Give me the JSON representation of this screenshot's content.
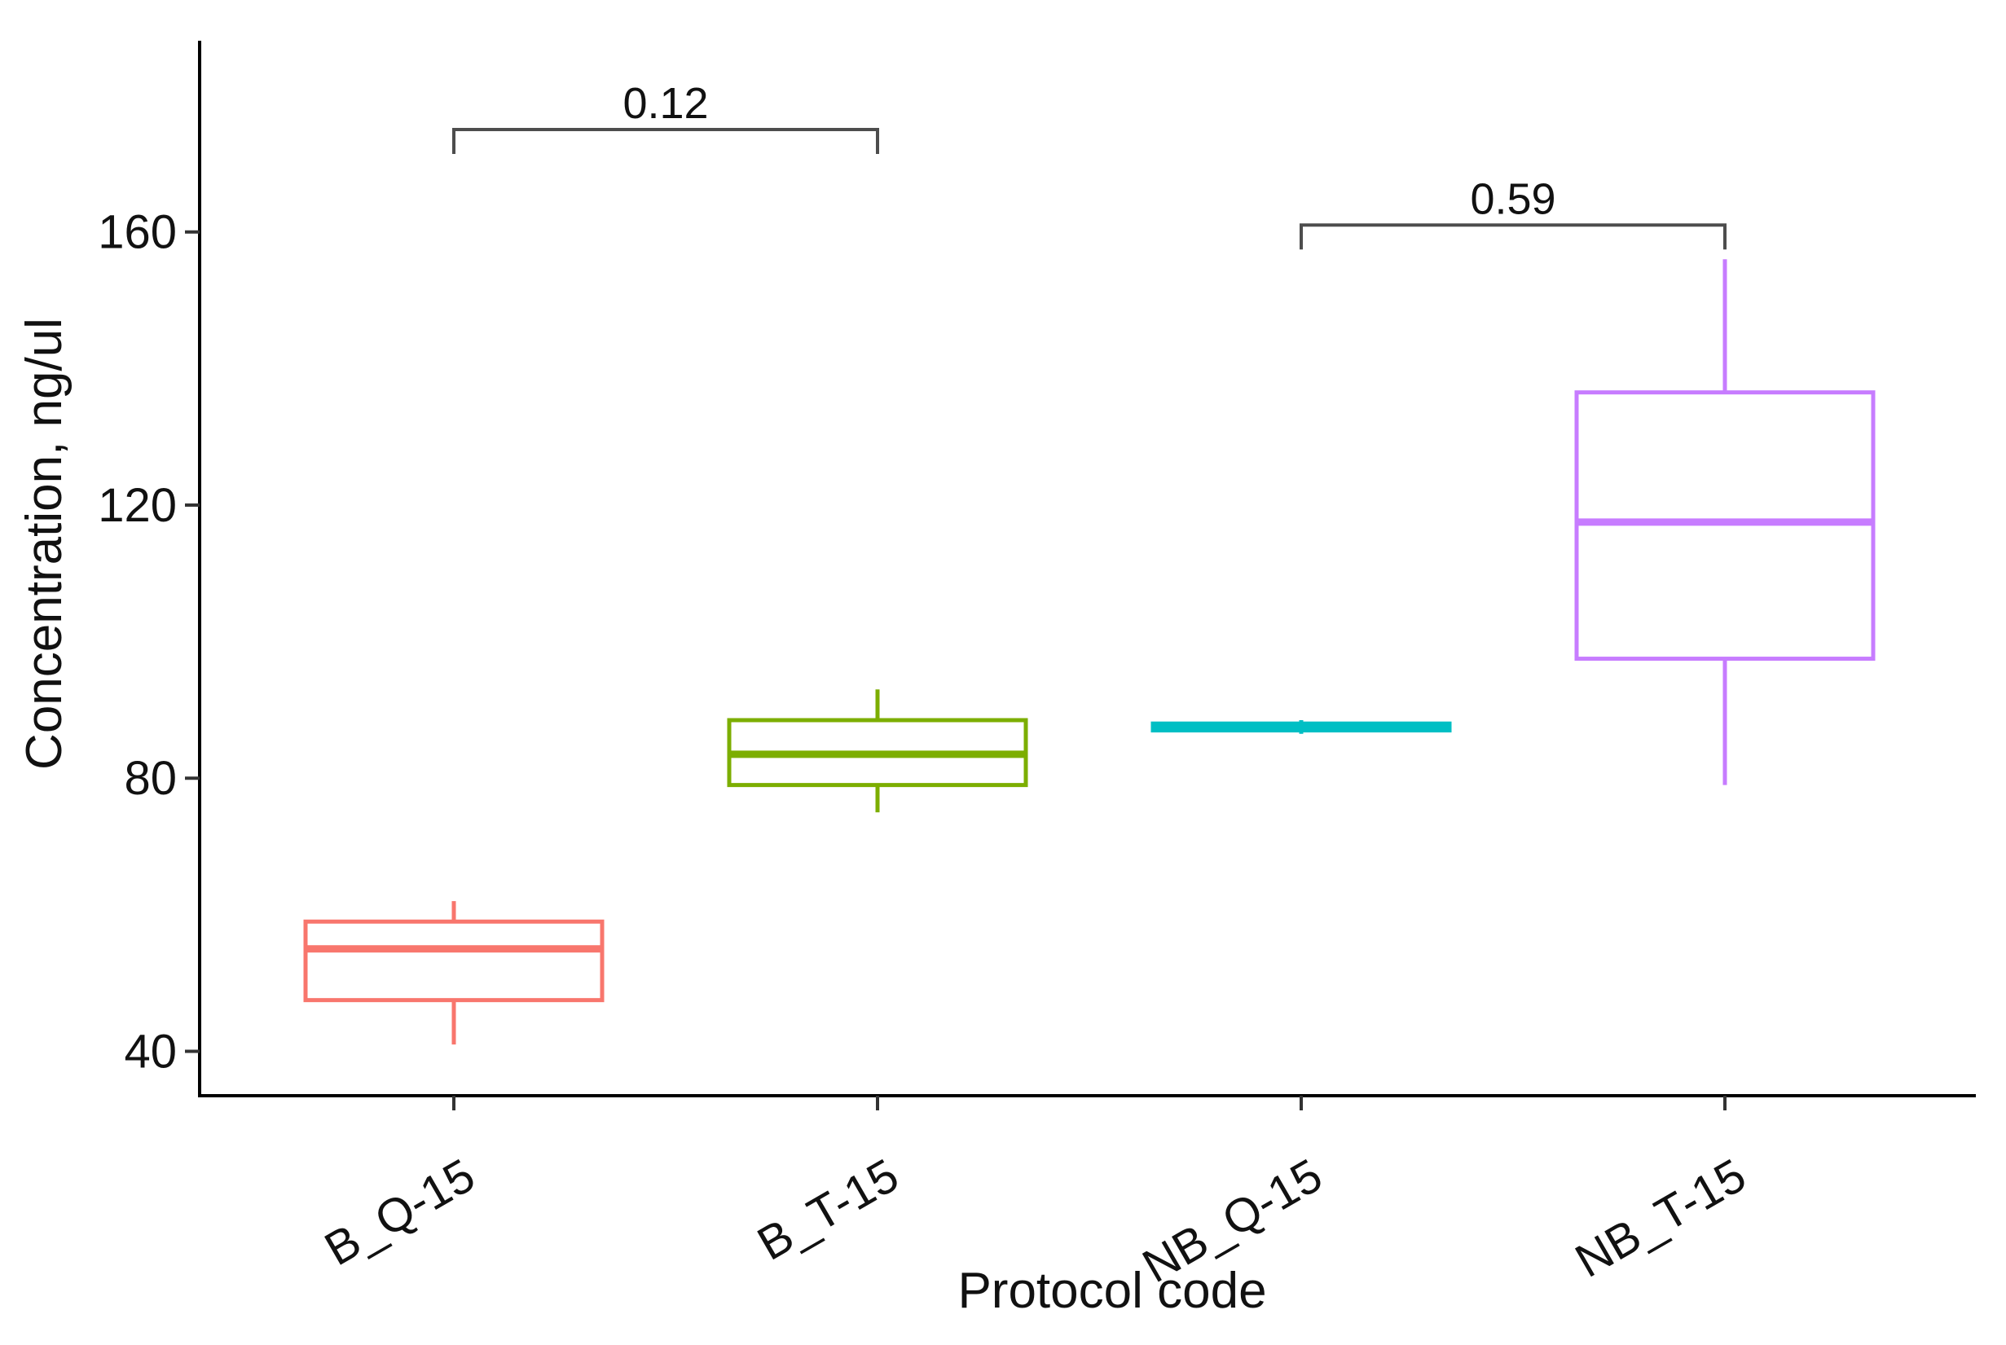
{
  "chart_data": {
    "type": "box",
    "title": "",
    "xlabel": "Protocol code",
    "ylabel": "Concentration, ng/ul",
    "ylim": [
      33.5,
      188
    ],
    "yticks": [
      40,
      80,
      120,
      160
    ],
    "ytick_labels": [
      "40",
      "80",
      "120",
      "160"
    ],
    "categories": [
      "B_Q-15",
      "B_T-15",
      "NB_Q-15",
      "NB_T-15"
    ],
    "boxes": [
      {
        "name": "B_Q-15",
        "color": "#F8766D",
        "min": 41,
        "q1": 47.5,
        "median": 55,
        "q3": 59,
        "max": 62
      },
      {
        "name": "B_T-15",
        "color": "#7CAE00",
        "min": 75,
        "q1": 79,
        "median": 83.5,
        "q3": 88.5,
        "max": 93
      },
      {
        "name": "NB_Q-15",
        "color": "#00BFC4",
        "min": 86.5,
        "q1": 87,
        "median": 87.5,
        "q3": 88,
        "max": 88.5
      },
      {
        "name": "NB_T-15",
        "color": "#C77CFF",
        "min": 79,
        "q1": 97.5,
        "median": 117.5,
        "q3": 136.5,
        "max": 156
      }
    ],
    "comparisons": [
      {
        "from": "B_Q-15",
        "to": "B_T-15",
        "label": "0.12",
        "y": 175
      },
      {
        "from": "NB_Q-15",
        "to": "NB_T-15",
        "label": "0.59",
        "y": 161
      }
    ],
    "grid": false,
    "legend": "none",
    "colors": {
      "axis": "#000000",
      "bracket": "#4d4d4d",
      "text": "#111111"
    }
  }
}
